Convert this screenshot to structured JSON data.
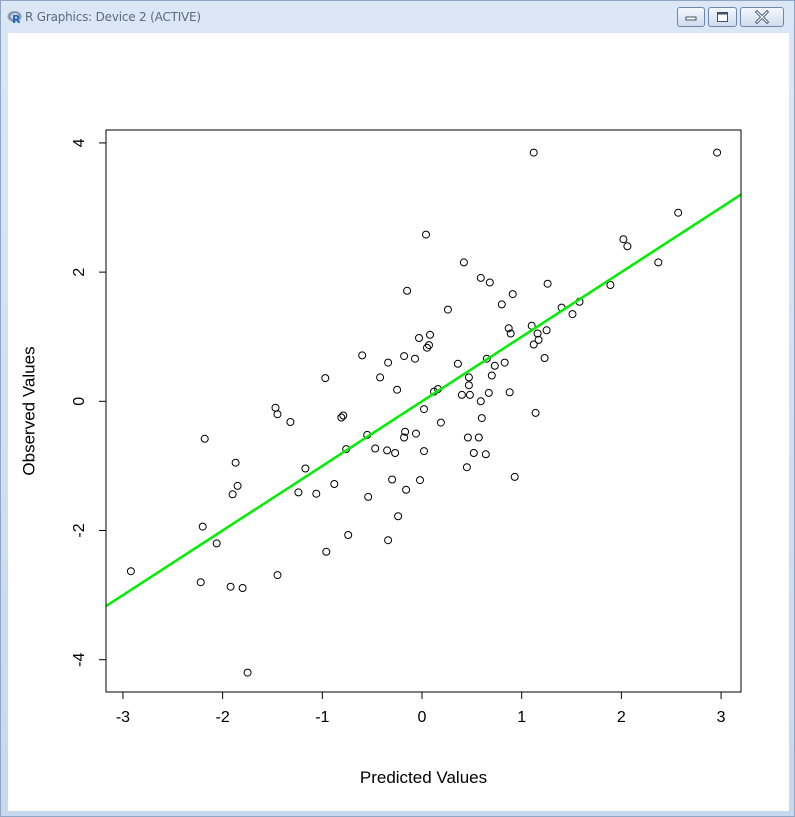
{
  "window": {
    "title": "R Graphics: Device 2 (ACTIVE)",
    "app_icon": "r-logo-icon",
    "buttons": [
      "minimize-icon",
      "maximize-icon",
      "close-icon"
    ]
  },
  "chart_data": {
    "type": "scatter",
    "title": "",
    "xlabel": "Predicted Values",
    "ylabel": "Observed Values",
    "xlim": [
      -3.17,
      3.2
    ],
    "ylim": [
      -4.5,
      4.2
    ],
    "xticks": [
      -3,
      -2,
      -1,
      0,
      1,
      2,
      3
    ],
    "yticks": [
      -4,
      -2,
      0,
      2,
      4
    ],
    "grid": false,
    "point_color": "#000000",
    "line_color": "#00ee00",
    "fit_line": {
      "intercept": 0.0,
      "slope": 1.0
    },
    "points": [
      [
        -2.92,
        -2.63
      ],
      [
        -2.22,
        -2.8
      ],
      [
        -2.2,
        -1.94
      ],
      [
        -2.18,
        -0.58
      ],
      [
        -2.06,
        -2.2
      ],
      [
        -1.92,
        -2.87
      ],
      [
        -1.9,
        -1.44
      ],
      [
        -1.87,
        -0.95
      ],
      [
        -1.85,
        -1.31
      ],
      [
        -1.8,
        -2.89
      ],
      [
        -1.75,
        -4.2
      ],
      [
        -1.47,
        -0.1
      ],
      [
        -1.45,
        -0.2
      ],
      [
        -1.45,
        -2.69
      ],
      [
        -1.32,
        -0.32
      ],
      [
        -1.24,
        -1.41
      ],
      [
        -1.17,
        -1.04
      ],
      [
        -1.06,
        -1.43
      ],
      [
        -0.97,
        0.36
      ],
      [
        -0.96,
        -2.33
      ],
      [
        -0.88,
        -1.28
      ],
      [
        -0.81,
        -0.25
      ],
      [
        -0.79,
        -0.22
      ],
      [
        -0.76,
        -0.74
      ],
      [
        -0.74,
        -2.07
      ],
      [
        -0.6,
        0.71
      ],
      [
        -0.55,
        -0.52
      ],
      [
        -0.54,
        -1.48
      ],
      [
        -0.47,
        -0.73
      ],
      [
        -0.42,
        0.37
      ],
      [
        -0.35,
        -0.76
      ],
      [
        -0.34,
        0.6
      ],
      [
        -0.34,
        -2.15
      ],
      [
        -0.3,
        -1.21
      ],
      [
        -0.27,
        -0.8
      ],
      [
        -0.25,
        0.18
      ],
      [
        -0.24,
        -1.78
      ],
      [
        -0.18,
        0.7
      ],
      [
        -0.18,
        -0.56
      ],
      [
        -0.17,
        -0.47
      ],
      [
        -0.16,
        -1.37
      ],
      [
        -0.15,
        1.71
      ],
      [
        -0.07,
        0.66
      ],
      [
        -0.06,
        -0.5
      ],
      [
        -0.03,
        0.98
      ],
      [
        -0.02,
        -1.22
      ],
      [
        0.02,
        -0.77
      ],
      [
        0.02,
        -0.12
      ],
      [
        0.04,
        2.58
      ],
      [
        0.05,
        0.83
      ],
      [
        0.07,
        0.87
      ],
      [
        0.08,
        1.03
      ],
      [
        0.12,
        0.15
      ],
      [
        0.16,
        0.19
      ],
      [
        0.19,
        -0.33
      ],
      [
        0.26,
        1.42
      ],
      [
        0.36,
        0.58
      ],
      [
        0.4,
        0.1
      ],
      [
        0.42,
        2.15
      ],
      [
        0.45,
        -1.02
      ],
      [
        0.46,
        -0.56
      ],
      [
        0.47,
        0.25
      ],
      [
        0.47,
        0.37
      ],
      [
        0.48,
        0.1
      ],
      [
        0.52,
        -0.8
      ],
      [
        0.57,
        -0.56
      ],
      [
        0.59,
        1.91
      ],
      [
        0.59,
        0.0
      ],
      [
        0.6,
        -0.26
      ],
      [
        0.64,
        -0.82
      ],
      [
        0.65,
        0.66
      ],
      [
        0.67,
        0.13
      ],
      [
        0.68,
        1.84
      ],
      [
        0.7,
        0.4
      ],
      [
        0.73,
        0.55
      ],
      [
        0.8,
        1.5
      ],
      [
        0.83,
        0.6
      ],
      [
        0.87,
        1.13
      ],
      [
        0.88,
        0.14
      ],
      [
        0.89,
        1.05
      ],
      [
        0.91,
        1.66
      ],
      [
        0.93,
        -1.17
      ],
      [
        1.1,
        1.17
      ],
      [
        1.12,
        3.85
      ],
      [
        1.12,
        0.88
      ],
      [
        1.14,
        -0.18
      ],
      [
        1.16,
        1.05
      ],
      [
        1.17,
        0.95
      ],
      [
        1.23,
        0.67
      ],
      [
        1.25,
        1.1
      ],
      [
        1.26,
        1.82
      ],
      [
        1.4,
        1.45
      ],
      [
        1.51,
        1.35
      ],
      [
        1.58,
        1.54
      ],
      [
        1.89,
        1.8
      ],
      [
        2.02,
        2.51
      ],
      [
        2.06,
        2.4
      ],
      [
        2.37,
        2.15
      ],
      [
        2.57,
        2.92
      ],
      [
        2.96,
        3.85
      ]
    ]
  }
}
